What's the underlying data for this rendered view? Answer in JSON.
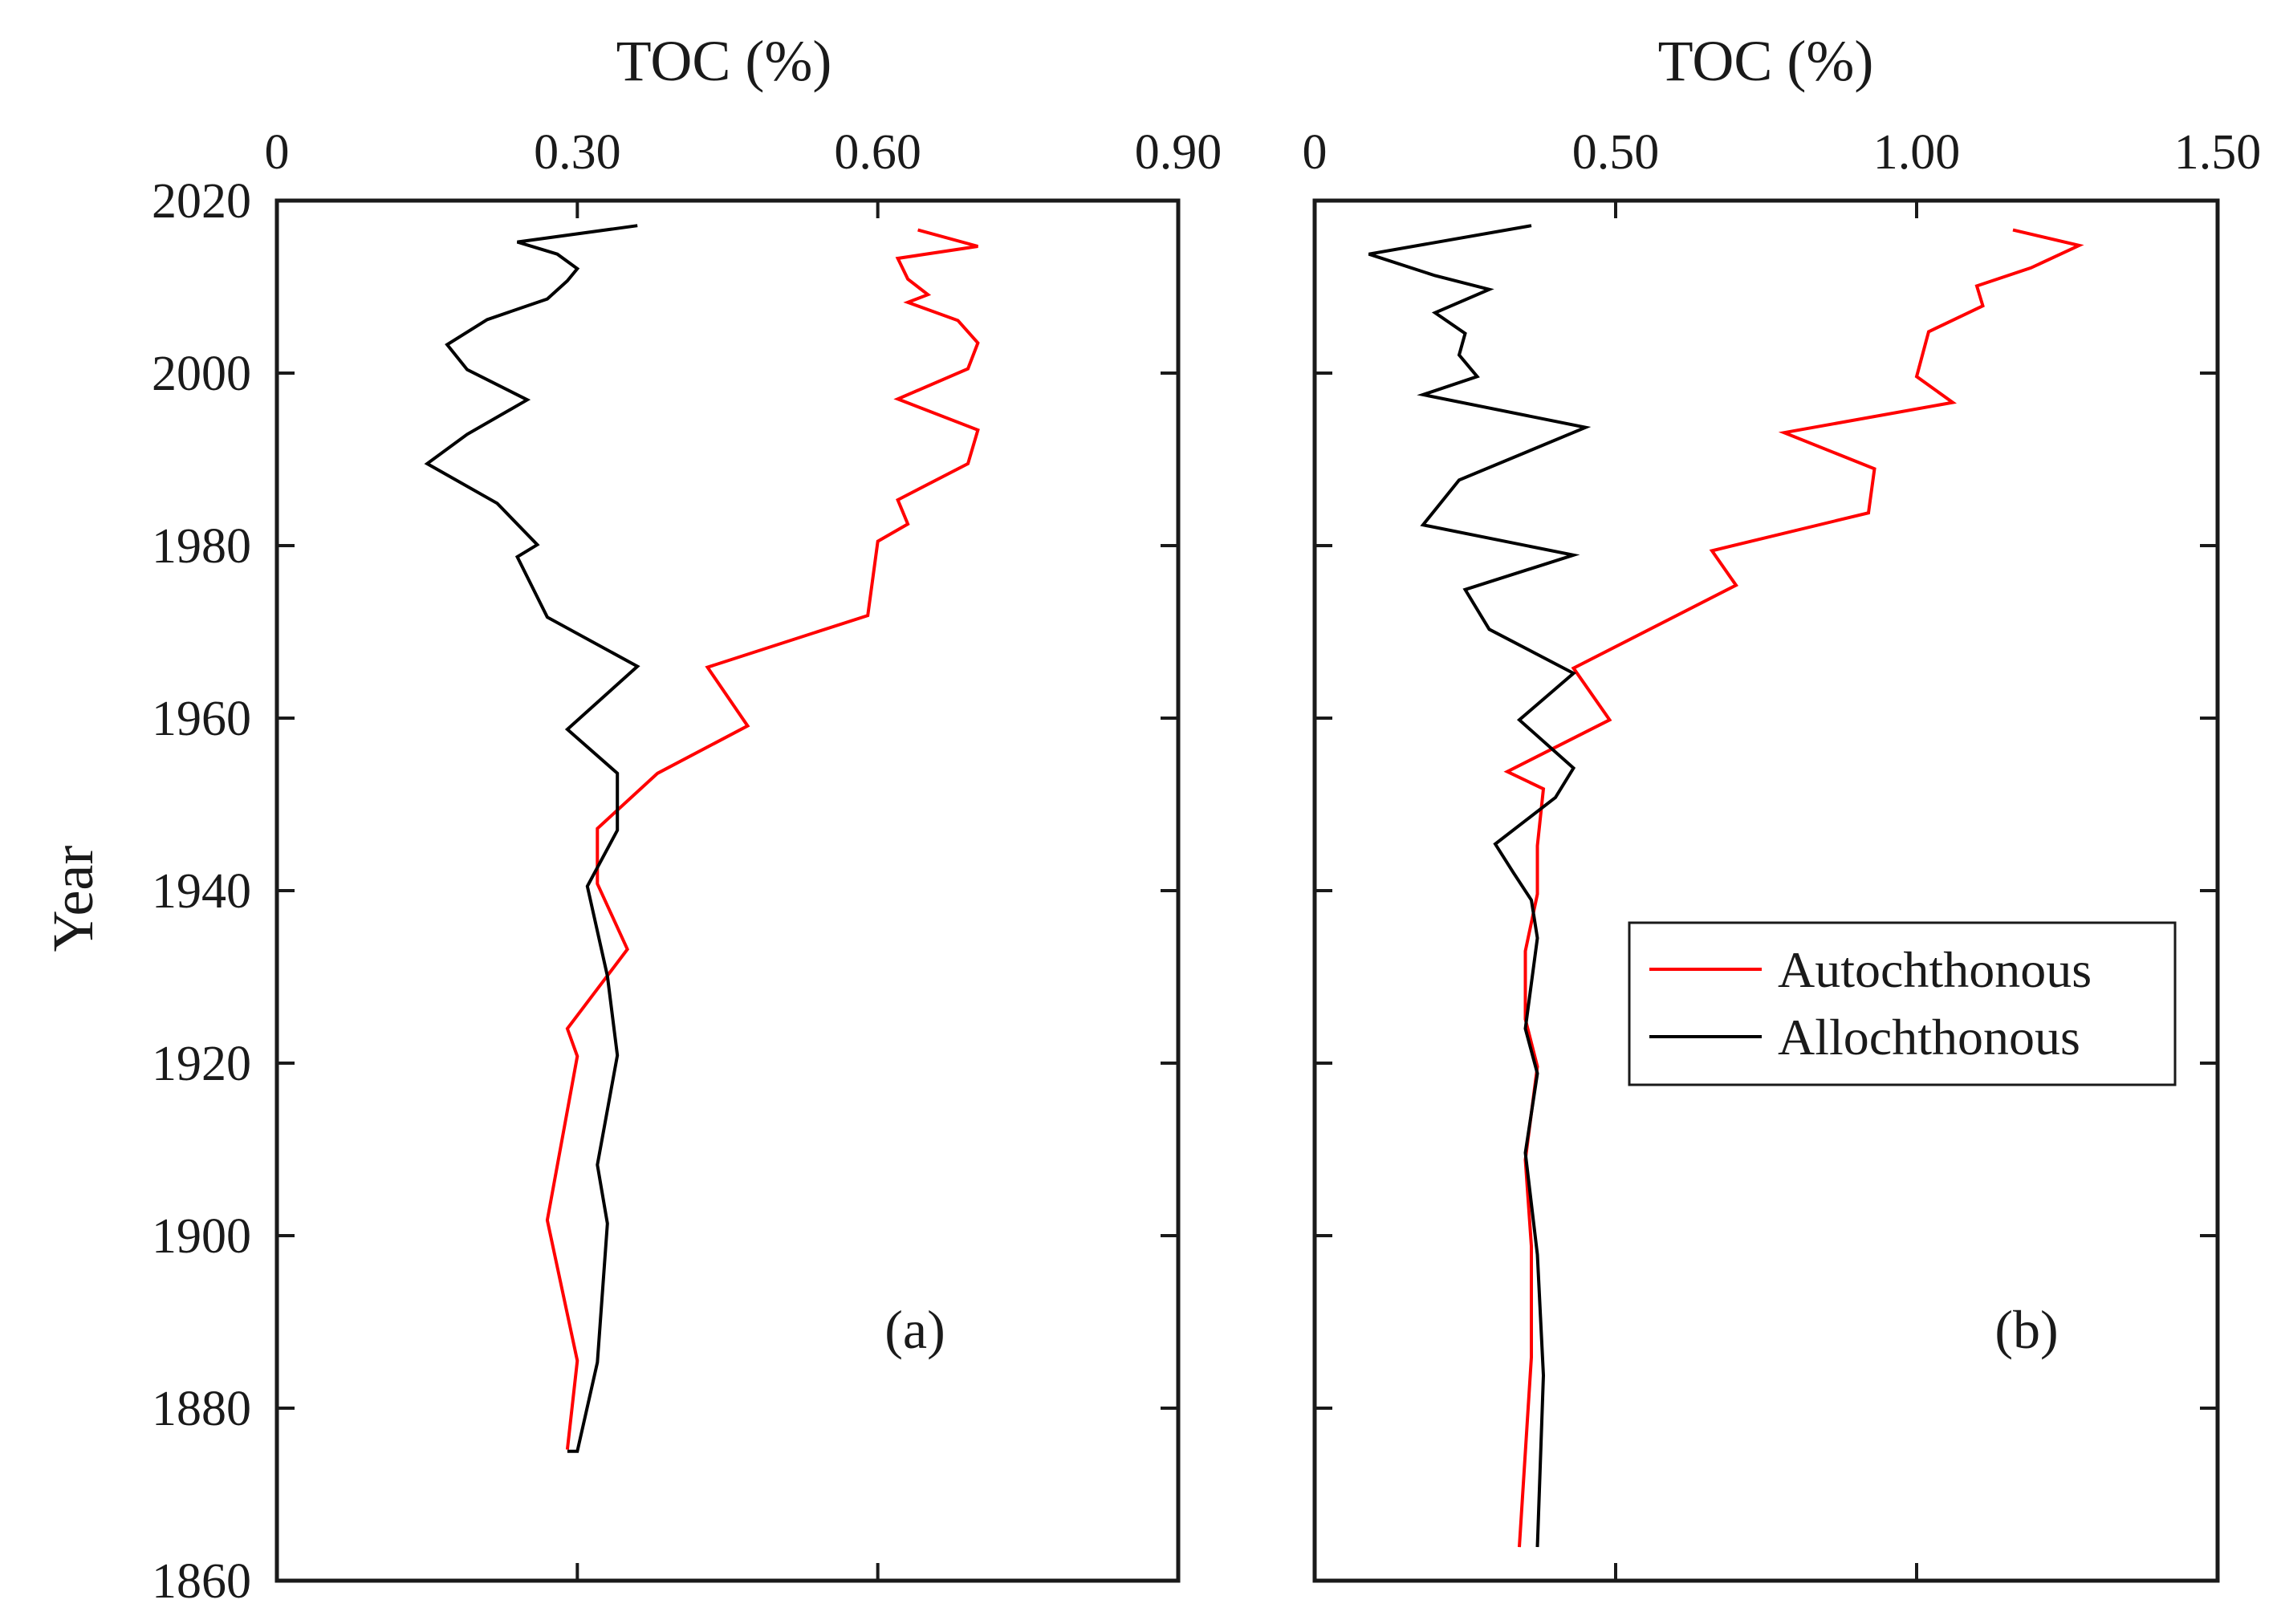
{
  "chart_data": [
    {
      "type": "line",
      "panel_label": "(a)",
      "title": "",
      "xlabel": "TOC (%)",
      "ylabel": "Year",
      "xlim": [
        0,
        0.9
      ],
      "ylim": [
        1860,
        2020
      ],
      "x_tick_values": [
        0,
        0.3,
        0.6,
        0.9
      ],
      "x_tick_labels": [
        "0",
        "0.30",
        "0.60",
        "0.90"
      ],
      "y_tick_values": [
        1860,
        1880,
        1900,
        1920,
        1940,
        1960,
        1980,
        2000,
        2020
      ],
      "y_tick_labels": [
        "1860",
        "1880",
        "1900",
        "1920",
        "1940",
        "1960",
        "1980",
        "2000",
        "2020"
      ],
      "grid": false,
      "series": [
        {
          "name": "Autochthonous",
          "color": "#ff0000",
          "x": [
            0.64,
            0.7,
            0.62,
            0.63,
            0.65,
            0.63,
            0.68,
            0.7,
            0.69,
            0.62,
            0.7,
            0.69,
            0.62,
            0.63,
            0.6,
            0.59,
            0.43,
            0.47,
            0.38,
            0.32,
            0.32,
            0.35,
            0.29,
            0.3,
            0.27,
            0.3,
            0.29
          ],
          "y": [
            2016.6,
            2014.7,
            2013.3,
            2010.9,
            2009.1,
            2008.2,
            2006.1,
            2003.5,
            2000.5,
            1997.0,
            1993.4,
            1989.5,
            1985.3,
            1982.5,
            1980.5,
            1971.9,
            1965.9,
            1959.1,
            1953.6,
            1947.2,
            1940.8,
            1933.2,
            1924.0,
            1920.8,
            1901.8,
            1885.5,
            1875.2
          ],
          "legend_label": "Autochthonous"
        },
        {
          "name": "Allochthonous",
          "color": "#000000",
          "x": [
            0.36,
            0.24,
            0.28,
            0.3,
            0.29,
            0.27,
            0.21,
            0.17,
            0.19,
            0.25,
            0.19,
            0.15,
            0.22,
            0.26,
            0.24,
            0.27,
            0.36,
            0.29,
            0.34,
            0.34,
            0.31,
            0.33,
            0.34,
            0.32,
            0.33,
            0.32,
            0.3,
            0.29
          ],
          "y": [
            2017.1,
            2015.2,
            2013.8,
            2012.1,
            2010.7,
            2008.6,
            2006.2,
            2003.3,
            2000.4,
            1996.9,
            1992.9,
            1989.5,
            1984.9,
            1980.1,
            1978.7,
            1971.7,
            1966.0,
            1958.7,
            1953.6,
            1947.0,
            1940.5,
            1930.1,
            1920.9,
            1908.2,
            1901.4,
            1885.3,
            1875.0,
            1875.0
          ],
          "legend_label": "Allochthonous"
        }
      ]
    },
    {
      "type": "line",
      "panel_label": "(b)",
      "title": "",
      "xlabel": "TOC (%)",
      "ylabel": "",
      "xlim": [
        0,
        1.5
      ],
      "ylim": [
        1860,
        2020
      ],
      "x_tick_values": [
        0,
        0.5,
        1.0,
        1.5
      ],
      "x_tick_labels": [
        "0",
        "0.50",
        "1.00",
        "1.50"
      ],
      "y_tick_values": [
        1860,
        1880,
        1900,
        1920,
        1940,
        1960,
        1980,
        2000,
        2020
      ],
      "y_tick_labels": [],
      "grid": false,
      "legend_position": "center-right",
      "series": [
        {
          "name": "Autochthonous",
          "color": "#ff0000",
          "x": [
            1.16,
            1.27,
            1.19,
            1.1,
            1.11,
            1.02,
            1.01,
            1.0,
            1.06,
            0.78,
            0.93,
            0.92,
            0.66,
            0.7,
            0.43,
            0.49,
            0.32,
            0.38,
            0.37,
            0.37,
            0.35,
            0.35,
            0.37,
            0.35,
            0.36,
            0.36,
            0.34
          ],
          "y": [
            2016.6,
            2014.8,
            2012.2,
            2010.1,
            2007.8,
            2004.8,
            2002.2,
            1999.6,
            1996.6,
            1993.1,
            1988.9,
            1983.8,
            1979.4,
            1975.4,
            1965.8,
            1959.8,
            1953.8,
            1951.8,
            1945.2,
            1939.6,
            1933.0,
            1925.1,
            1919.6,
            1908.8,
            1898.8,
            1885.9,
            1863.9
          ],
          "legend_label": "Autochthonous"
        },
        {
          "name": "Allochthonous",
          "color": "#000000",
          "x": [
            0.36,
            0.09,
            0.2,
            0.29,
            0.2,
            0.25,
            0.24,
            0.27,
            0.18,
            0.45,
            0.24,
            0.18,
            0.43,
            0.25,
            0.29,
            0.43,
            0.34,
            0.43,
            0.4,
            0.3,
            0.33,
            0.36,
            0.37,
            0.35,
            0.37,
            0.35,
            0.37,
            0.38,
            0.37
          ],
          "y": [
            2017.1,
            2013.8,
            2011.3,
            2009.7,
            2007.0,
            2004.6,
            2002.1,
            1999.6,
            1997.5,
            1993.7,
            1987.6,
            1982.4,
            1978.9,
            1974.9,
            1970.3,
            1965.2,
            1959.8,
            1954.2,
            1950.8,
            1945.4,
            1942.1,
            1938.9,
            1934.5,
            1924.0,
            1918.8,
            1909.6,
            1897.8,
            1883.8,
            1863.9
          ],
          "legend_label": "Allochthonous"
        }
      ]
    }
  ]
}
